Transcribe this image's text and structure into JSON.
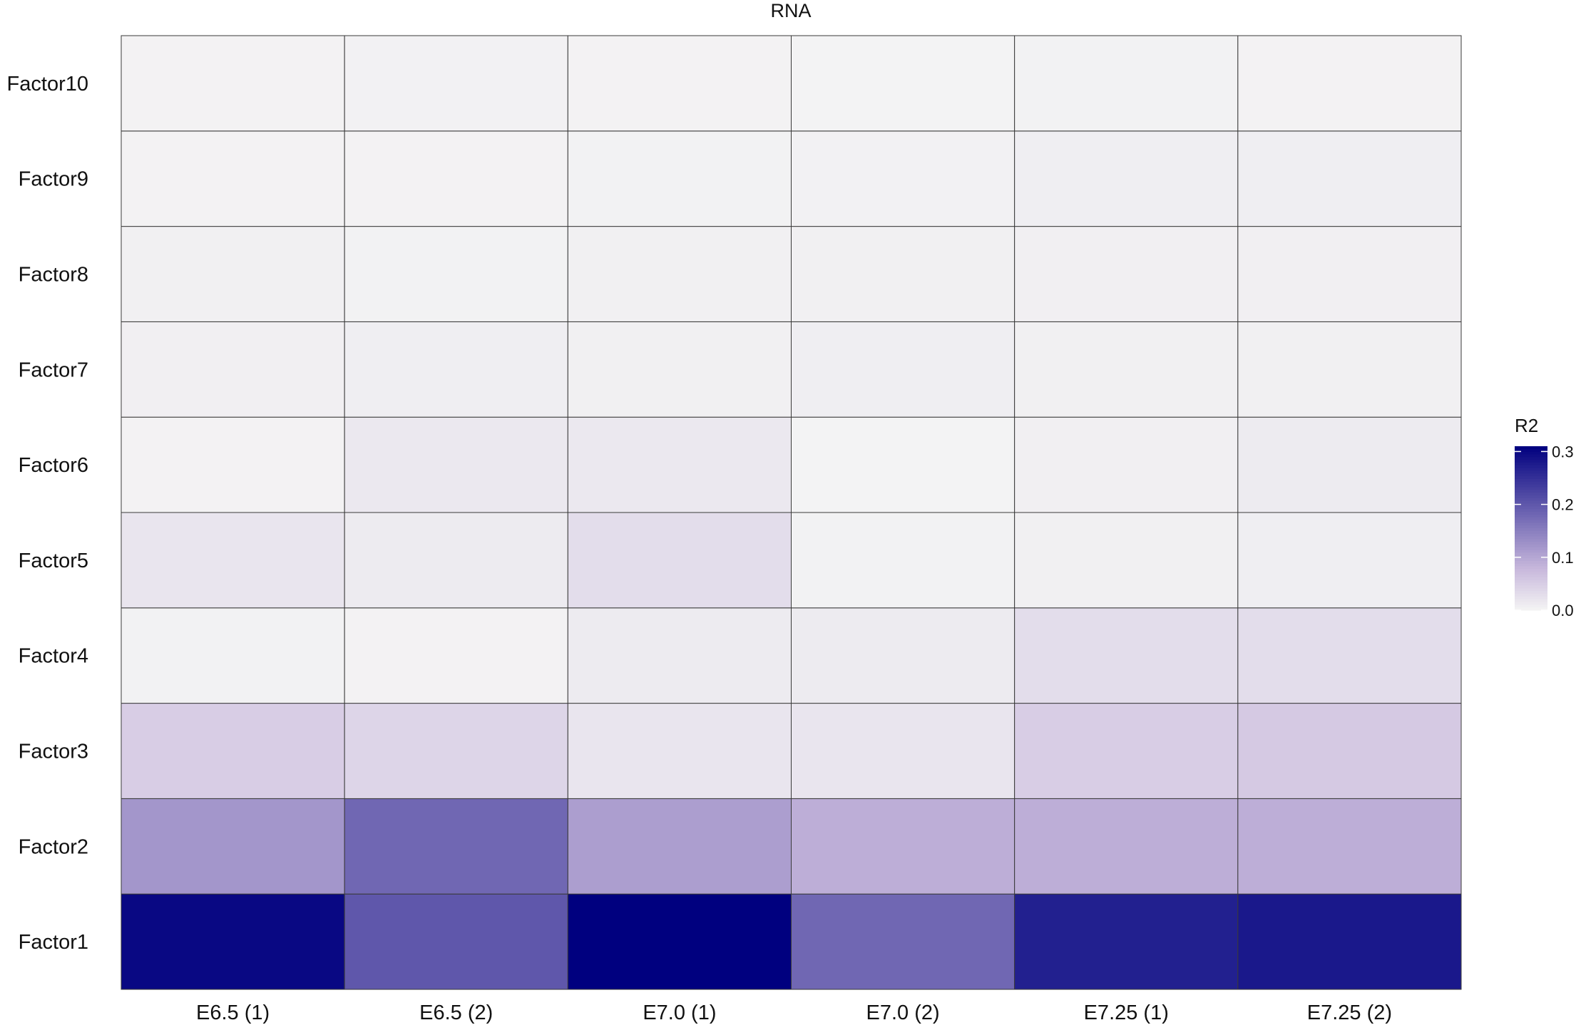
{
  "chart_data": {
    "type": "heatmap",
    "title": "RNA",
    "x_categories": [
      "E6.5 (1)",
      "E6.5 (2)",
      "E7.0 (1)",
      "E7.0 (2)",
      "E7.25 (1)",
      "E7.25 (2)"
    ],
    "y_categories": [
      "Factor1",
      "Factor2",
      "Factor3",
      "Factor4",
      "Factor5",
      "Factor6",
      "Factor7",
      "Factor8",
      "Factor9",
      "Factor10"
    ],
    "values": [
      [
        0.3,
        0.2,
        0.31,
        0.18,
        0.27,
        0.28
      ],
      [
        0.12,
        0.18,
        0.11,
        0.09,
        0.09,
        0.09
      ],
      [
        0.05,
        0.04,
        0.02,
        0.02,
        0.05,
        0.055
      ],
      [
        0.003,
        0.002,
        0.012,
        0.012,
        0.03,
        0.03
      ],
      [
        0.02,
        0.012,
        0.03,
        0.003,
        0.005,
        0.008
      ],
      [
        0.002,
        0.015,
        0.015,
        0.001,
        0.006,
        0.012
      ],
      [
        0.006,
        0.008,
        0.005,
        0.008,
        0.005,
        0.005
      ],
      [
        0.005,
        0.003,
        0.005,
        0.005,
        0.006,
        0.006
      ],
      [
        0.002,
        0.002,
        0.003,
        0.004,
        0.008,
        0.008
      ],
      [
        0.002,
        0.004,
        0.002,
        0.001,
        0.003,
        0.002
      ]
    ],
    "legend": {
      "title": "R2",
      "min": 0,
      "max": 0.31,
      "ticks": [
        0.0,
        0.1,
        0.2,
        0.3
      ],
      "tick_labels": [
        "0.0",
        "0.1",
        "0.2",
        "0.3"
      ],
      "position": "right"
    },
    "color_scale": {
      "low": "#f4f4f4",
      "mid": "#c8b8dc",
      "high": "#00007f"
    }
  }
}
